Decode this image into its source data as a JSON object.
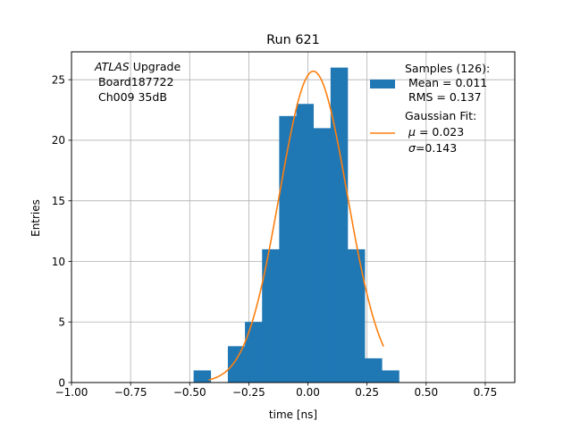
{
  "chart_data": {
    "type": "bar",
    "title": "Run 621",
    "xlabel": "time [ns]",
    "ylabel": "Entries",
    "xlim": [
      -1.0,
      0.875
    ],
    "ylim": [
      0,
      27.3
    ],
    "grid": true,
    "x_ticks": [
      -1.0,
      -0.75,
      -0.5,
      -0.25,
      0.0,
      0.25,
      0.5,
      0.75
    ],
    "x_tick_labels": [
      "−1.00",
      "−0.75",
      "−0.50",
      "−0.25",
      "0.00",
      "0.25",
      "0.50",
      "0.75"
    ],
    "y_ticks": [
      0,
      5,
      10,
      15,
      20,
      25
    ],
    "y_tick_labels": [
      "0",
      "5",
      "10",
      "15",
      "20",
      "25"
    ],
    "annotation": {
      "italic": "ATLAS",
      "line1_rest": " Upgrade",
      "line2": "Board187722",
      "line3": "Ch009 35dB"
    },
    "histogram": {
      "bin_width": 0.0724,
      "bins": [
        {
          "left": -0.4835,
          "count": 1
        },
        {
          "left": -0.3387,
          "count": 3
        },
        {
          "left": -0.2663,
          "count": 5
        },
        {
          "left": -0.1939,
          "count": 11
        },
        {
          "left": -0.1215,
          "count": 22
        },
        {
          "left": -0.0491,
          "count": 23
        },
        {
          "left": 0.0233,
          "count": 21
        },
        {
          "left": 0.0957,
          "count": 26
        },
        {
          "left": 0.1681,
          "count": 11
        },
        {
          "left": 0.2405,
          "count": 2
        },
        {
          "left": 0.3129,
          "count": 1
        }
      ],
      "color": "#1f77b4"
    },
    "fit": {
      "mu": 0.023,
      "sigma": 0.143,
      "amplitude": 25.7,
      "x_range": [
        -0.42,
        0.32
      ],
      "color": "#ff7f0e"
    },
    "legend": {
      "placement": "top-right",
      "samples_line1": "Samples (126):",
      "samples_line2": "Mean = 0.011",
      "samples_line3": "RMS = 0.137",
      "fit_line1": "Gaussian Fit:",
      "fit_line2_value": "= 0.023",
      "fit_line2_symbol": "μ",
      "fit_line3_value": "=0.143",
      "fit_line3_symbol": "σ"
    }
  }
}
